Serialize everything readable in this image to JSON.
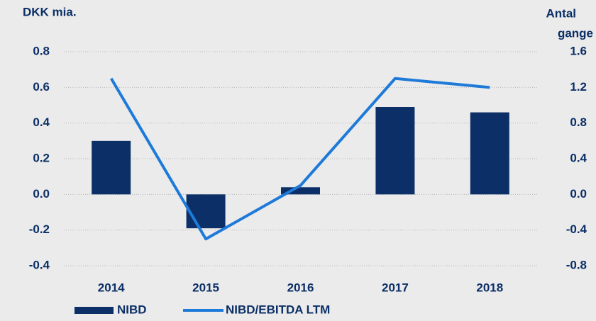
{
  "chart_data": {
    "type": "bar",
    "y_label": "DKK mia.",
    "y2_label": [
      "Antal",
      "gange"
    ],
    "categories": [
      "2014",
      "2015",
      "2016",
      "2017",
      "2018"
    ],
    "series": [
      {
        "name": "NIBD",
        "type": "bar",
        "color": "#0b2f66",
        "values": [
          0.3,
          -0.19,
          0.04,
          0.49,
          0.46
        ]
      },
      {
        "name": "NIBD/EBITDA LTM",
        "type": "line",
        "axis": "y2",
        "color": "#1e7ad9",
        "values": [
          1.3,
          -0.5,
          0.1,
          1.3,
          1.2
        ]
      }
    ],
    "ylim": [
      -0.4,
      0.8
    ],
    "yticks": [
      0.8,
      0.6,
      0.4,
      0.2,
      {
        "value": 0,
        "label": "0.0"
      },
      -0.2,
      -0.4
    ],
    "y2lim": [
      -0.8,
      1.6
    ],
    "y2ticks": [
      1.6,
      1.2,
      0.8,
      0.4,
      {
        "value": 0,
        "label": "0.0"
      },
      -0.4,
      -0.8
    ],
    "grid": true,
    "legend": "bottom"
  }
}
